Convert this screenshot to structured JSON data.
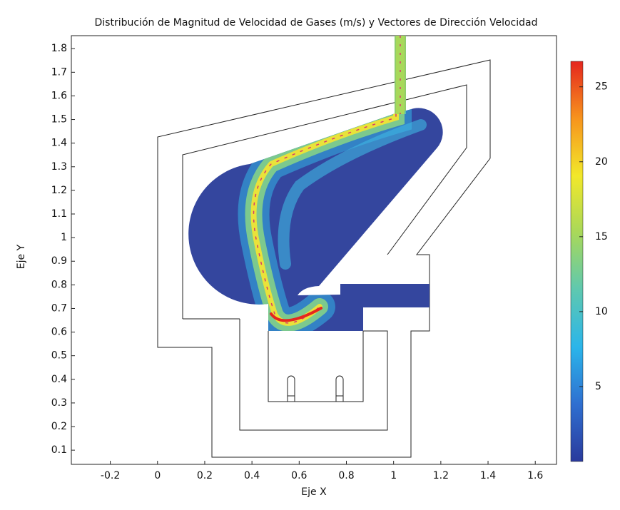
{
  "chart_data": {
    "type": "surface",
    "title": "Distribución de Magnitud de Velocidad de Gases (m/s) y Vectores de Dirección Velocidad",
    "x_label": "Eje X",
    "y_label": "Eje Y",
    "xlim": [
      -0.365,
      1.69
    ],
    "ylim": [
      0.04,
      1.855
    ],
    "xticks": [
      -0.2,
      0,
      0.2,
      0.4,
      0.6,
      0.8,
      1,
      1.2,
      1.4,
      1.6
    ],
    "yticks": [
      0.1,
      0.2,
      0.3,
      0.4,
      0.5,
      0.6,
      0.7,
      0.8,
      0.9,
      1,
      1.1,
      1.2,
      1.3,
      1.4,
      1.5,
      1.6,
      1.7,
      1.8
    ],
    "colorbar": {
      "lim": [
        0,
        26.7
      ],
      "ticks": [
        5,
        10,
        15,
        20,
        25
      ],
      "colors": [
        "#2a3a9c",
        "#2f6fd0",
        "#2bb5ea",
        "#5ec8b0",
        "#a8d85a",
        "#f2e82a",
        "#f7941d",
        "#e5261f"
      ]
    }
  }
}
